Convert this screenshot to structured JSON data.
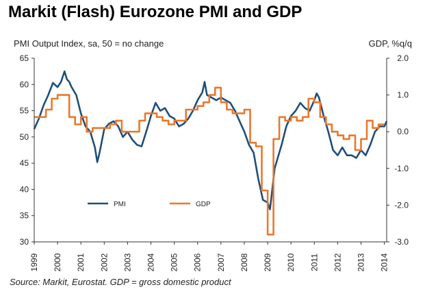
{
  "chart_data": {
    "type": "line",
    "title": "Markit (Flash) Eurozone PMI and GDP",
    "ylabel_left": "PMI Output Index, sa, 50 = no change",
    "ylabel_right": "GDP, %q/q",
    "source": "Source: Markit, Eurostat. GDP = gross domestic product",
    "x_range": [
      1999.0,
      2014.1
    ],
    "ylim_left": [
      30,
      65
    ],
    "ylim_right": [
      -3.0,
      2.0
    ],
    "left_ticks": [
      "65",
      "60",
      "55",
      "50",
      "45",
      "40",
      "35",
      "30"
    ],
    "right_ticks": [
      "2.0",
      "1.0",
      "0.0",
      "-1.0",
      "-2.0",
      "-3.0"
    ],
    "x_ticks": [
      "1999",
      "2000",
      "2001",
      "2002",
      "2003",
      "2004",
      "2005",
      "2006",
      "2007",
      "2008",
      "2009",
      "2010",
      "2011",
      "2012",
      "2013",
      "2014"
    ],
    "legend": [
      {
        "name": "PMI",
        "color": "#1f4e79"
      },
      {
        "name": "GDP",
        "color": "#e9782c"
      }
    ],
    "series": [
      {
        "name": "PMI",
        "axis": "left",
        "color": "#1f4e79",
        "x": [
          1999.0,
          1999.2,
          1999.4,
          1999.6,
          1999.8,
          2000.0,
          2000.15,
          2000.3,
          2000.4,
          2000.5,
          2000.6,
          2000.8,
          2001.0,
          2001.2,
          2001.4,
          2001.6,
          2001.7,
          2001.8,
          2002.0,
          2002.2,
          2002.4,
          2002.6,
          2002.8,
          2003.0,
          2003.2,
          2003.4,
          2003.6,
          2003.8,
          2004.0,
          2004.2,
          2004.4,
          2004.6,
          2004.8,
          2005.0,
          2005.2,
          2005.4,
          2005.6,
          2005.8,
          2006.0,
          2006.2,
          2006.3,
          2006.4,
          2006.6,
          2006.8,
          2007.0,
          2007.2,
          2007.4,
          2007.6,
          2007.8,
          2008.0,
          2008.2,
          2008.4,
          2008.6,
          2008.8,
          2009.0,
          2009.1,
          2009.2,
          2009.3,
          2009.4,
          2009.6,
          2009.8,
          2010.0,
          2010.2,
          2010.4,
          2010.6,
          2010.8,
          2011.0,
          2011.1,
          2011.2,
          2011.4,
          2011.6,
          2011.8,
          2012.0,
          2012.2,
          2012.4,
          2012.6,
          2012.8,
          2013.0,
          2013.2,
          2013.4,
          2013.6,
          2013.8,
          2014.0,
          2014.1
        ],
        "values": [
          51.5,
          53.5,
          56.0,
          58.0,
          60.3,
          59.5,
          60.5,
          62.5,
          61.0,
          60.5,
          59.5,
          58.0,
          54.5,
          52.0,
          51.0,
          48.0,
          45.2,
          47.0,
          51.5,
          52.5,
          53.0,
          52.0,
          50.0,
          51.0,
          49.5,
          48.5,
          48.2,
          51.0,
          54.0,
          56.5,
          55.0,
          55.5,
          54.0,
          53.5,
          52.0,
          52.5,
          53.5,
          55.0,
          57.0,
          58.5,
          60.5,
          58.0,
          57.5,
          57.0,
          57.5,
          57.0,
          56.5,
          55.0,
          53.0,
          51.0,
          48.5,
          47.0,
          42.0,
          38.0,
          37.5,
          36.2,
          40.0,
          44.0,
          45.5,
          48.5,
          52.0,
          54.0,
          55.0,
          56.5,
          55.5,
          55.0,
          57.0,
          58.3,
          57.5,
          54.0,
          51.0,
          47.5,
          46.5,
          48.0,
          46.5,
          46.5,
          46.0,
          47.5,
          46.5,
          48.5,
          51.0,
          52.0,
          52.0,
          53.0
        ]
      },
      {
        "name": "GDP",
        "axis": "right",
        "color": "#e9782c",
        "x": [
          1999.0,
          1999.25,
          1999.5,
          1999.75,
          2000.0,
          2000.25,
          2000.5,
          2000.75,
          2001.0,
          2001.25,
          2001.5,
          2001.75,
          2002.0,
          2002.25,
          2002.5,
          2002.75,
          2003.0,
          2003.25,
          2003.5,
          2003.75,
          2004.0,
          2004.25,
          2004.5,
          2004.75,
          2005.0,
          2005.25,
          2005.5,
          2005.75,
          2006.0,
          2006.25,
          2006.5,
          2006.75,
          2007.0,
          2007.25,
          2007.5,
          2007.75,
          2008.0,
          2008.25,
          2008.5,
          2008.75,
          2009.0,
          2009.25,
          2009.5,
          2009.75,
          2010.0,
          2010.25,
          2010.5,
          2010.75,
          2011.0,
          2011.25,
          2011.5,
          2011.75,
          2012.0,
          2012.25,
          2012.5,
          2012.75,
          2013.0,
          2013.25,
          2013.5,
          2013.75
        ],
        "values": [
          0.4,
          0.4,
          0.6,
          0.9,
          1.0,
          1.0,
          0.4,
          0.2,
          0.4,
          0.0,
          0.1,
          0.1,
          0.1,
          0.2,
          0.3,
          0.0,
          0.0,
          0.0,
          0.3,
          0.5,
          0.5,
          0.4,
          0.3,
          0.2,
          0.3,
          0.3,
          0.6,
          0.6,
          0.7,
          0.8,
          1.0,
          1.2,
          0.8,
          0.6,
          0.5,
          0.5,
          0.6,
          -0.3,
          -0.4,
          -1.6,
          -2.8,
          -0.2,
          0.4,
          0.3,
          0.4,
          0.3,
          0.4,
          0.9,
          0.8,
          0.4,
          0.2,
          0.0,
          -0.1,
          -0.2,
          -0.1,
          -0.5,
          -0.2,
          0.3,
          0.1,
          0.2
        ]
      }
    ]
  }
}
